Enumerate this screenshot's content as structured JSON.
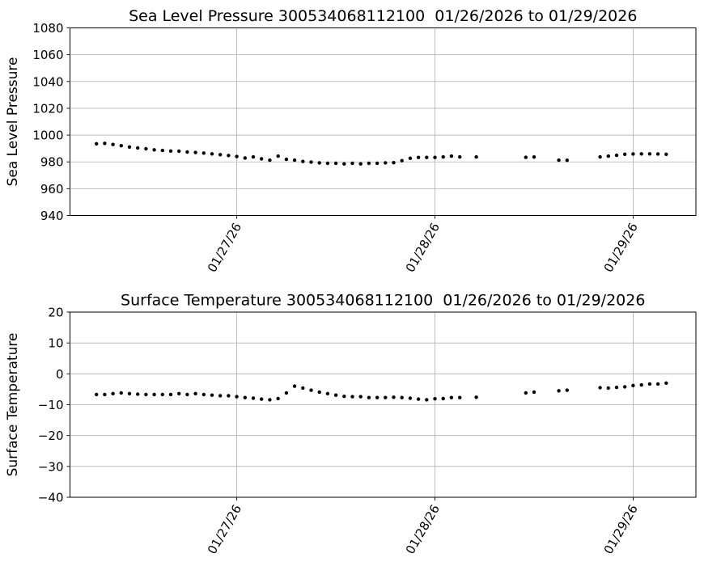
{
  "figure": {
    "background": "#ffffff",
    "grid_color": "#b0b0b0",
    "spine_color": "#000000",
    "marker_color": "#000000",
    "x_axis_note": "x positions are hours since 01/26/2026 00:00"
  },
  "chart_data": [
    {
      "type": "scatter",
      "name": "sea-level-pressure",
      "title": "Sea Level Pressure 300534068112100  01/26/2026 to 01/29/2026",
      "ylabel": "Sea Level Pressure",
      "ylim": [
        940,
        1080
      ],
      "yticks": [
        940,
        960,
        980,
        1000,
        1020,
        1040,
        1060,
        1080
      ],
      "xlim_hours": [
        3.8,
        79.6
      ],
      "xticks": [
        {
          "label": "01/27/26",
          "hour": 24
        },
        {
          "label": "01/28/26",
          "hour": 48
        },
        {
          "label": "01/29/26",
          "hour": 72
        }
      ],
      "grid": true,
      "legend": "none",
      "x_hours": [
        7,
        8,
        9,
        10,
        11,
        12,
        13,
        14,
        15,
        16,
        17,
        18,
        19,
        20,
        21,
        22,
        23,
        24,
        25,
        26,
        27,
        28,
        29,
        30,
        31,
        32,
        33,
        34,
        35,
        36,
        37,
        38,
        39,
        40,
        41,
        42,
        43,
        44,
        45,
        46,
        47,
        48,
        49,
        50,
        51,
        53,
        59,
        60,
        63,
        64,
        68,
        69,
        70,
        71,
        72,
        73,
        74,
        75,
        76
      ],
      "values": [
        993.5,
        993.8,
        993.0,
        992.1,
        991.1,
        990.4,
        989.8,
        989.0,
        988.5,
        988.1,
        988.0,
        987.4,
        987.0,
        986.6,
        986.0,
        985.4,
        984.8,
        984.0,
        982.9,
        983.7,
        982.3,
        981.3,
        984.3,
        981.9,
        981.3,
        980.3,
        979.9,
        979.3,
        978.9,
        978.9,
        978.5,
        978.9,
        978.5,
        978.9,
        978.9,
        979.3,
        979.4,
        980.9,
        982.7,
        983.3,
        983.3,
        983.3,
        983.7,
        984.3,
        983.7,
        983.7,
        983.4,
        983.6,
        981.3,
        981.2,
        983.7,
        984.3,
        984.9,
        985.7,
        985.9,
        986.0,
        986.0,
        985.9,
        985.7
      ]
    },
    {
      "type": "scatter",
      "name": "surface-temperature",
      "title": "Surface Temperature 300534068112100  01/26/2026 to 01/29/2026",
      "ylabel": "Surface Temperature",
      "ylim": [
        -40,
        20
      ],
      "yticks": [
        -40,
        -30,
        -20,
        -10,
        0,
        10,
        20
      ],
      "xlim_hours": [
        3.8,
        79.6
      ],
      "xticks": [
        {
          "label": "01/27/26",
          "hour": 24
        },
        {
          "label": "01/28/26",
          "hour": 48
        },
        {
          "label": "01/29/26",
          "hour": 72
        }
      ],
      "grid": true,
      "legend": "none",
      "x_hours": [
        7,
        8,
        9,
        10,
        11,
        12,
        13,
        14,
        15,
        16,
        17,
        18,
        19,
        20,
        21,
        22,
        23,
        24,
        25,
        26,
        27,
        28,
        29,
        30,
        31,
        32,
        33,
        34,
        35,
        36,
        37,
        38,
        39,
        40,
        41,
        42,
        43,
        44,
        45,
        46,
        47,
        48,
        49,
        50,
        51,
        53,
        59,
        60,
        63,
        64,
        68,
        69,
        70,
        71,
        72,
        73,
        74,
        75,
        76
      ],
      "values": [
        -6.7,
        -6.7,
        -6.4,
        -6.2,
        -6.4,
        -6.6,
        -6.7,
        -6.7,
        -6.7,
        -6.7,
        -6.4,
        -6.7,
        -6.4,
        -6.7,
        -6.9,
        -7.1,
        -7.1,
        -7.4,
        -7.7,
        -7.9,
        -8.2,
        -8.4,
        -8.0,
        -6.2,
        -4.0,
        -4.6,
        -5.3,
        -5.9,
        -6.4,
        -6.9,
        -7.3,
        -7.4,
        -7.4,
        -7.7,
        -7.7,
        -7.7,
        -7.6,
        -7.7,
        -7.9,
        -8.2,
        -8.4,
        -8.1,
        -8.0,
        -7.7,
        -7.7,
        -7.6,
        -6.2,
        -5.9,
        -5.5,
        -5.3,
        -4.5,
        -4.6,
        -4.4,
        -4.2,
        -3.8,
        -3.6,
        -3.3,
        -3.3,
        -3.0
      ]
    }
  ]
}
